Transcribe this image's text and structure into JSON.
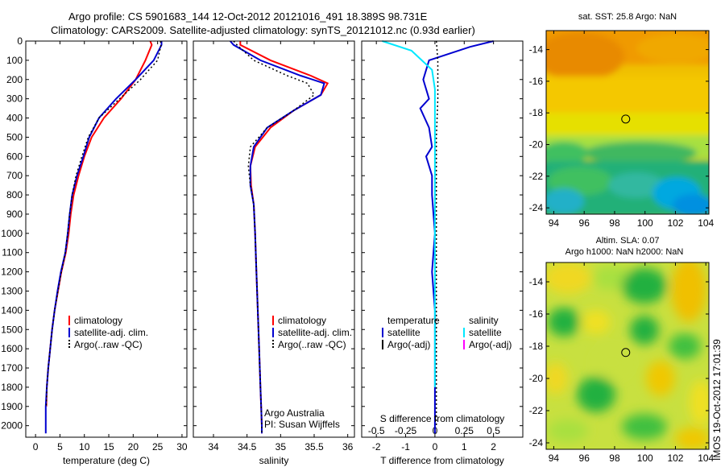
{
  "header": {
    "line1": "Argo profile: CS 5901683_144 12-Oct-2012 20121016_491 18.389S 98.731E",
    "line2": "Climatology: CARS2009. Satellite-adjusted climatology: synTS_20121012.nc (0.93d earlier)"
  },
  "colors": {
    "climatology": "#ff0000",
    "satellite": "#0000d0",
    "argo": "#000000",
    "salinity_sat": "#00e8ff",
    "salinity_argo": "#ff00ff"
  },
  "credits": {
    "org": "Argo Australia",
    "pi": "PI: Susan Wijffels",
    "stamp": "IMOS 19-Oct-2012 17:01:39"
  },
  "chart_data": [
    {
      "id": "temperature",
      "type": "line",
      "xlabel": "temperature (deg C)",
      "ylabel": "",
      "xlim": [
        -2,
        31
      ],
      "ylim": [
        2060,
        0
      ],
      "xticks": [
        0,
        5,
        10,
        15,
        20,
        25,
        30
      ],
      "yticks": [
        0,
        100,
        200,
        300,
        400,
        500,
        600,
        700,
        800,
        900,
        1000,
        1100,
        1200,
        1300,
        1400,
        1500,
        1600,
        1700,
        1800,
        1900,
        2000
      ],
      "legend": [
        "climatology",
        "satellite-adj. clim.",
        "Argo(..raw -QC)"
      ],
      "series": [
        {
          "name": "climatology",
          "style": "solid",
          "color": "#ff0000",
          "x": [
            23.5,
            23.8,
            22.5,
            20.5,
            17.5,
            14.0,
            11.5,
            10.0,
            8.8,
            7.8,
            7.2,
            6.8,
            6.2,
            5.3,
            4.6,
            3.9,
            3.4,
            3.0,
            2.6,
            2.3,
            2.2
          ],
          "y": [
            0,
            20,
            100,
            200,
            300,
            400,
            500,
            600,
            700,
            800,
            900,
            1000,
            1100,
            1200,
            1300,
            1400,
            1500,
            1600,
            1700,
            1800,
            1900
          ]
        },
        {
          "name": "satellite-adj. clim.",
          "style": "solid",
          "color": "#0000d0",
          "x": [
            25.8,
            25.8,
            24.2,
            20.5,
            16.5,
            13.0,
            11.0,
            9.8,
            8.5,
            7.5,
            7.0,
            6.6,
            6.1,
            5.2,
            4.5,
            3.9,
            3.4,
            3.0,
            2.6,
            2.3,
            2.1,
            2.1
          ],
          "y": [
            0,
            20,
            100,
            200,
            300,
            400,
            500,
            600,
            700,
            800,
            900,
            1000,
            1100,
            1200,
            1300,
            1400,
            1500,
            1600,
            1700,
            1800,
            1900,
            2040
          ]
        },
        {
          "name": "Argo(..raw -QC)",
          "style": "dotted",
          "color": "#000000",
          "x": [
            25.6,
            25.7,
            25.0,
            21.5,
            17.2,
            13.0,
            10.8,
            9.5,
            8.3,
            7.5,
            7.0,
            6.6,
            6.1,
            5.3,
            4.6,
            3.9,
            3.4,
            3.0,
            2.6,
            2.3,
            2.2
          ],
          "y": [
            0,
            20,
            100,
            200,
            300,
            400,
            500,
            600,
            700,
            800,
            900,
            1000,
            1100,
            1200,
            1300,
            1400,
            1500,
            1600,
            1700,
            1800,
            1900
          ]
        }
      ]
    },
    {
      "id": "salinity",
      "type": "line",
      "xlabel": "salinity",
      "ylabel": "",
      "xlim": [
        33.7,
        36.1
      ],
      "ylim": [
        2060,
        0
      ],
      "xticks": [
        34,
        34.5,
        35,
        35.5,
        36
      ],
      "legend": [
        "climatology",
        "satellite-adj. clim.",
        "Argo(..raw -QC)"
      ],
      "series": [
        {
          "name": "climatology",
          "style": "solid",
          "color": "#ff0000",
          "x": [
            34.4,
            34.4,
            34.85,
            35.45,
            35.7,
            35.6,
            35.2,
            34.85,
            34.62,
            34.55,
            34.56,
            34.6,
            34.62,
            34.64,
            34.66,
            34.68,
            34.69,
            34.7,
            34.71,
            34.72,
            34.72
          ],
          "y": [
            0,
            20,
            100,
            180,
            220,
            280,
            360,
            450,
            550,
            650,
            750,
            850,
            1000,
            1200,
            1400,
            1600,
            1700,
            1800,
            1900,
            2000,
            2040
          ]
        },
        {
          "name": "satellite-adj. clim.",
          "style": "solid",
          "color": "#0000d0",
          "x": [
            34.25,
            34.3,
            34.7,
            35.3,
            35.65,
            35.6,
            35.2,
            34.8,
            34.6,
            34.55,
            34.55,
            34.6,
            34.62,
            34.64,
            34.66,
            34.68,
            34.69,
            34.7,
            34.71,
            34.72,
            34.72
          ],
          "y": [
            0,
            20,
            100,
            180,
            220,
            280,
            360,
            450,
            550,
            650,
            750,
            850,
            1000,
            1200,
            1400,
            1600,
            1700,
            1800,
            1900,
            2000,
            2040
          ]
        },
        {
          "name": "Argo(..raw -QC)",
          "style": "dotted",
          "color": "#000000",
          "x": [
            34.3,
            34.35,
            34.6,
            35.1,
            35.4,
            35.5,
            35.2,
            34.8,
            34.55,
            34.52,
            34.55,
            34.6,
            34.62,
            34.64,
            34.66,
            34.68,
            34.69,
            34.7,
            34.71,
            34.72,
            34.72
          ],
          "y": [
            0,
            20,
            100,
            180,
            220,
            280,
            360,
            450,
            550,
            650,
            750,
            850,
            1000,
            1200,
            1400,
            1600,
            1700,
            1800,
            1900,
            2000,
            2040
          ]
        }
      ]
    },
    {
      "id": "difference",
      "type": "line",
      "xlabel": "T difference from climatology",
      "xlabel_top": "S difference from climatology",
      "ylabel": "",
      "xlim": [
        -2.5,
        3.0
      ],
      "ylim": [
        2060,
        0
      ],
      "xticks": [
        -2,
        -1,
        0,
        1,
        2
      ],
      "xticks_top": [
        "-0.5",
        "-0.25",
        "0",
        "0.25",
        "0.5"
      ],
      "legend": {
        "temperature": [
          "temperature",
          "satellite",
          "Argo(-adj)"
        ],
        "salinity": [
          "salinity",
          "satellite",
          "Argo(-adj)"
        ]
      },
      "series": [
        {
          "name": "temperature satellite",
          "style": "solid",
          "color": "#0000d0",
          "x": [
            2.0,
            1.2,
            -0.2,
            -0.4,
            -0.2,
            -0.5,
            -0.2,
            -0.1,
            -0.3,
            -0.1,
            -0.1,
            0.0,
            -0.1,
            0.0,
            0.0,
            0.0,
            0.0,
            0.0
          ],
          "y": [
            0,
            30,
            100,
            200,
            300,
            350,
            450,
            550,
            600,
            700,
            800,
            1000,
            1200,
            1400,
            1600,
            1800,
            1900,
            2040
          ]
        },
        {
          "name": "salinity satellite",
          "style": "solid",
          "color": "#00e8ff",
          "x": [
            -1.8,
            -0.8,
            -0.1,
            0.0,
            0.0,
            0.0,
            0.0,
            0.0,
            0.0,
            0.0,
            0.0
          ],
          "y": [
            0,
            50,
            150,
            250,
            350,
            500,
            700,
            900,
            1200,
            1500,
            1800
          ]
        },
        {
          "name": "temperature Argo(-adj)",
          "style": "dotted",
          "color": "#000000",
          "x": [
            0.05,
            0.1,
            0.1,
            0.05,
            0.05,
            0.05,
            0.05,
            0.05,
            0.05
          ],
          "y": [
            0,
            100,
            300,
            500,
            800,
            1100,
            1400,
            1700,
            2000
          ]
        }
      ]
    },
    {
      "id": "sst-map",
      "type": "heatmap",
      "title": "sat. SST: 25.8  Argo: NaN",
      "xlim": [
        93.5,
        104.2
      ],
      "ylim": [
        -24.4,
        -12.8
      ],
      "xticks": [
        94,
        96,
        98,
        100,
        102,
        104
      ],
      "yticks": [
        -14,
        -16,
        -18,
        -20,
        -22,
        -24
      ],
      "marker": {
        "lon": 98.731,
        "lat": -18.389
      }
    },
    {
      "id": "sla-map",
      "type": "heatmap",
      "title": "Altim. SLA: 0.07",
      "subtitle": "Argo h1000: NaN h2000: NaN",
      "xlim": [
        93.5,
        104.2
      ],
      "ylim": [
        -24.4,
        -12.8
      ],
      "xticks": [
        94,
        96,
        98,
        100,
        102,
        104
      ],
      "yticks": [
        -14,
        -16,
        -18,
        -20,
        -22,
        -24
      ],
      "marker": {
        "lon": 98.731,
        "lat": -18.389
      }
    }
  ]
}
